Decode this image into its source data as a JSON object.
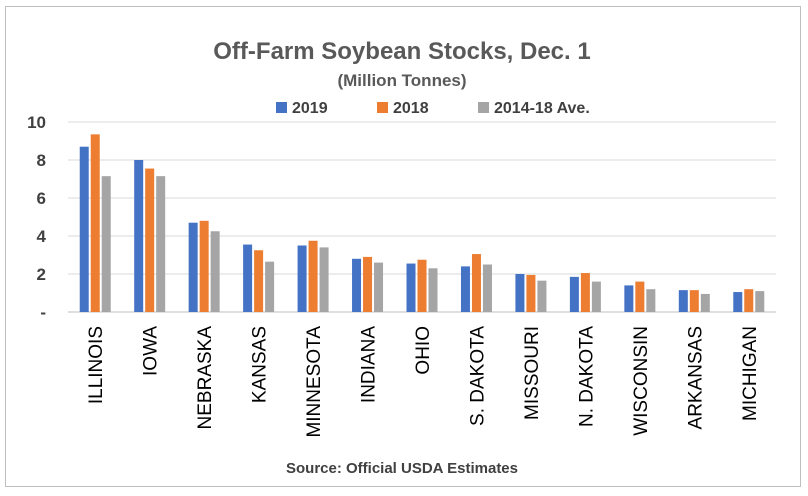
{
  "chart_data": {
    "type": "bar",
    "title": "Off-Farm Soybean Stocks, Dec. 1",
    "subtitle": "(Million Tonnes)",
    "source": "Source: Official USDA Estimates",
    "categories": [
      "ILLINOIS",
      "IOWA",
      "NEBRASKA",
      "KANSAS",
      "MINNESOTA",
      "INDIANA",
      "OHIO",
      "S. DAKOTA",
      "MISSOURI",
      "N. DAKOTA",
      "WISCONSIN",
      "ARKANSAS",
      "MICHIGAN"
    ],
    "series": [
      {
        "name": "2019",
        "color": "#4472C4",
        "values": [
          8.7,
          8.0,
          4.7,
          3.55,
          3.5,
          2.8,
          2.55,
          2.4,
          2.0,
          1.85,
          1.4,
          1.15,
          1.05
        ]
      },
      {
        "name": "2018",
        "color": "#ED7D31",
        "values": [
          9.35,
          7.55,
          4.8,
          3.25,
          3.75,
          2.9,
          2.75,
          3.05,
          1.95,
          2.05,
          1.6,
          1.15,
          1.2
        ]
      },
      {
        "name": "2014-18 Ave.",
        "color": "#A5A5A5",
        "values": [
          7.15,
          7.15,
          4.25,
          2.65,
          3.4,
          2.6,
          2.3,
          2.5,
          1.65,
          1.6,
          1.2,
          0.95,
          1.1
        ]
      }
    ],
    "yticks": [
      "-",
      "2",
      "4",
      "6",
      "8",
      "10"
    ],
    "ylim": [
      0,
      10
    ],
    "grid": true,
    "legend_position": "top"
  }
}
